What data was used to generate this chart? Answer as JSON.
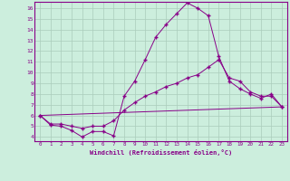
{
  "xlabel": "Windchill (Refroidissement éolien,°C)",
  "background_color": "#cceedd",
  "grid_color": "#aaccbb",
  "line_color": "#880088",
  "xlim": [
    -0.5,
    23.5
  ],
  "ylim": [
    3.6,
    16.6
  ],
  "yticks": [
    4,
    5,
    6,
    7,
    8,
    9,
    10,
    11,
    12,
    13,
    14,
    15,
    16
  ],
  "xticks": [
    0,
    1,
    2,
    3,
    4,
    5,
    6,
    7,
    8,
    9,
    10,
    11,
    12,
    13,
    14,
    15,
    16,
    17,
    18,
    19,
    20,
    21,
    22,
    23
  ],
  "line1_x": [
    0,
    1,
    2,
    3,
    4,
    5,
    6,
    7,
    8,
    9,
    10,
    11,
    12,
    13,
    14,
    15,
    16,
    17,
    18,
    19,
    20,
    21,
    22,
    23
  ],
  "line1_y": [
    6.0,
    5.1,
    5.0,
    4.6,
    4.0,
    4.5,
    4.5,
    4.1,
    7.8,
    9.2,
    11.2,
    13.3,
    14.5,
    15.5,
    16.5,
    16.0,
    15.3,
    11.5,
    9.2,
    8.5,
    8.0,
    7.6,
    8.0,
    6.8
  ],
  "line2_x": [
    0,
    1,
    2,
    3,
    4,
    5,
    6,
    7,
    8,
    9,
    10,
    11,
    12,
    13,
    14,
    15,
    16,
    17,
    18,
    19,
    20,
    21,
    22,
    23
  ],
  "line2_y": [
    6.0,
    5.2,
    5.2,
    5.0,
    4.8,
    5.0,
    5.0,
    5.5,
    6.5,
    7.2,
    7.8,
    8.2,
    8.7,
    9.0,
    9.5,
    9.8,
    10.5,
    11.2,
    9.5,
    9.2,
    8.2,
    7.8,
    7.8,
    6.8
  ],
  "line3_x": [
    0,
    23
  ],
  "line3_y": [
    6.0,
    6.8
  ],
  "marker": "+"
}
